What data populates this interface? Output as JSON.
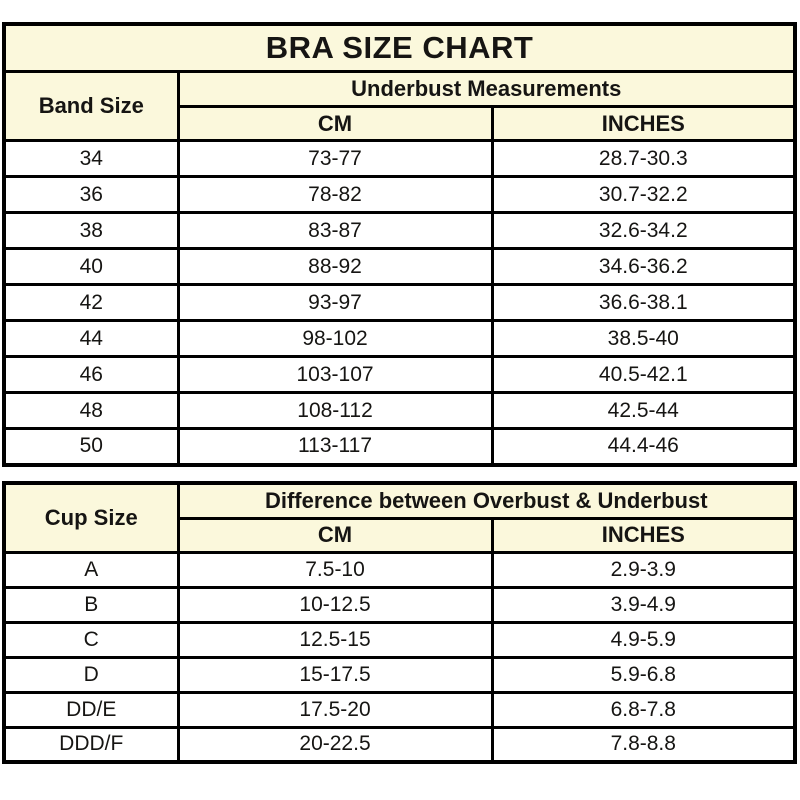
{
  "colors": {
    "header_bg": "#fbf8dc",
    "row_bg": "#ffffff",
    "border": "#000000",
    "text": "#161513"
  },
  "title": "BRA SIZE CHART",
  "band_table": {
    "corner_header": "Band Size",
    "group_header": "Underbust Measurements",
    "col_cm": "CM",
    "col_inches": "INCHES",
    "rows": [
      {
        "size": "34",
        "cm": "73-77",
        "inches": "28.7-30.3"
      },
      {
        "size": "36",
        "cm": "78-82",
        "inches": "30.7-32.2"
      },
      {
        "size": "38",
        "cm": "83-87",
        "inches": "32.6-34.2"
      },
      {
        "size": "40",
        "cm": "88-92",
        "inches": "34.6-36.2"
      },
      {
        "size": "42",
        "cm": "93-97",
        "inches": "36.6-38.1"
      },
      {
        "size": "44",
        "cm": "98-102",
        "inches": "38.5-40"
      },
      {
        "size": "46",
        "cm": "103-107",
        "inches": "40.5-42.1"
      },
      {
        "size": "48",
        "cm": "108-112",
        "inches": "42.5-44"
      },
      {
        "size": "50",
        "cm": "113-117",
        "inches": "44.4-46"
      }
    ]
  },
  "cup_table": {
    "corner_header": "Cup Size",
    "group_header": "Difference between Overbust & Underbust",
    "col_cm": "CM",
    "col_inches": "INCHES",
    "rows": [
      {
        "size": "A",
        "cm": "7.5-10",
        "inches": "2.9-3.9"
      },
      {
        "size": "B",
        "cm": "10-12.5",
        "inches": "3.9-4.9"
      },
      {
        "size": "C",
        "cm": "12.5-15",
        "inches": "4.9-5.9"
      },
      {
        "size": "D",
        "cm": "15-17.5",
        "inches": "5.9-6.8"
      },
      {
        "size": "DD/E",
        "cm": "17.5-20",
        "inches": "6.8-7.8"
      },
      {
        "size": "DDD/F",
        "cm": "20-22.5",
        "inches": "7.8-8.8"
      }
    ]
  },
  "chart_data": [
    {
      "type": "table",
      "title": "BRA SIZE CHART",
      "group_header": "Underbust Measurements",
      "columns": [
        "Band Size",
        "CM",
        "INCHES"
      ],
      "rows": [
        [
          "34",
          "73-77",
          "28.7-30.3"
        ],
        [
          "36",
          "78-82",
          "30.7-32.2"
        ],
        [
          "38",
          "83-87",
          "32.6-34.2"
        ],
        [
          "40",
          "88-92",
          "34.6-36.2"
        ],
        [
          "42",
          "93-97",
          "36.6-38.1"
        ],
        [
          "44",
          "98-102",
          "38.5-40"
        ],
        [
          "46",
          "103-107",
          "40.5-42.1"
        ],
        [
          "48",
          "108-112",
          "42.5-44"
        ],
        [
          "50",
          "113-117",
          "44.4-46"
        ]
      ]
    },
    {
      "type": "table",
      "title": "",
      "group_header": "Difference between Overbust & Underbust",
      "columns": [
        "Cup Size",
        "CM",
        "INCHES"
      ],
      "rows": [
        [
          "A",
          "7.5-10",
          "2.9-3.9"
        ],
        [
          "B",
          "10-12.5",
          "3.9-4.9"
        ],
        [
          "C",
          "12.5-15",
          "4.9-5.9"
        ],
        [
          "D",
          "15-17.5",
          "5.9-6.8"
        ],
        [
          "DD/E",
          "17.5-20",
          "6.8-7.8"
        ],
        [
          "DDD/F",
          "20-22.5",
          "7.8-8.8"
        ]
      ]
    }
  ]
}
